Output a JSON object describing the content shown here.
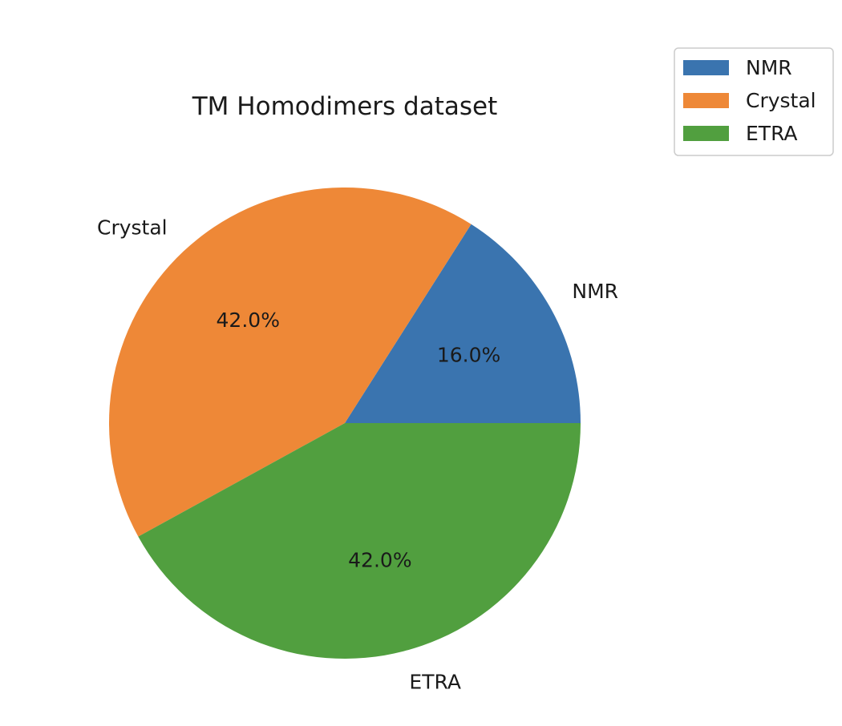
{
  "chart_data": {
    "type": "pie",
    "title": "TM Homodimers dataset",
    "categories": [
      "NMR",
      "Crystal",
      "ETRA"
    ],
    "values": [
      16.0,
      42.0,
      42.0
    ],
    "value_labels": [
      "16.0%",
      "42.0%",
      "42.0%"
    ],
    "colors": [
      "#3a74af",
      "#ee8837",
      "#519f3f"
    ],
    "start_angle_deg": 0,
    "direction": "counterclockwise",
    "legend": {
      "position": "top-right",
      "entries": [
        "NMR",
        "Crystal",
        "ETRA"
      ]
    }
  }
}
